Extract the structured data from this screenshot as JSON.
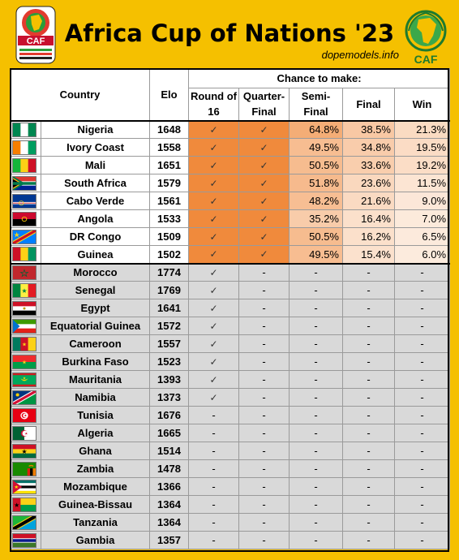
{
  "header": {
    "title": "Africa Cup of Nations '23",
    "subtitle": "dopemodels.info",
    "logo_left_text": "CAF",
    "logo_right_text": "CAF"
  },
  "chart_data": {
    "type": "table",
    "super_header": "Chance to make:",
    "columns": [
      "Country",
      "Elo",
      "Round of 16",
      "Quarter-Final",
      "Semi-Final",
      "Final",
      "Win"
    ],
    "rows": [
      {
        "country": "Nigeria",
        "elo": "1648",
        "r16": "✓",
        "qf": "✓",
        "sf": "64.8%",
        "final": "38.5%",
        "win": "21.3%"
      },
      {
        "country": "Ivory Coast",
        "elo": "1558",
        "r16": "✓",
        "qf": "✓",
        "sf": "49.5%",
        "final": "34.8%",
        "win": "19.5%"
      },
      {
        "country": "Mali",
        "elo": "1651",
        "r16": "✓",
        "qf": "✓",
        "sf": "50.5%",
        "final": "33.6%",
        "win": "19.2%"
      },
      {
        "country": "South Africa",
        "elo": "1579",
        "r16": "✓",
        "qf": "✓",
        "sf": "51.8%",
        "final": "23.6%",
        "win": "11.5%"
      },
      {
        "country": "Cabo Verde",
        "elo": "1561",
        "r16": "✓",
        "qf": "✓",
        "sf": "48.2%",
        "final": "21.6%",
        "win": "9.0%"
      },
      {
        "country": "Angola",
        "elo": "1533",
        "r16": "✓",
        "qf": "✓",
        "sf": "35.2%",
        "final": "16.4%",
        "win": "7.0%"
      },
      {
        "country": "DR Congo",
        "elo": "1509",
        "r16": "✓",
        "qf": "✓",
        "sf": "50.5%",
        "final": "16.2%",
        "win": "6.5%"
      },
      {
        "country": "Guinea",
        "elo": "1502",
        "r16": "✓",
        "qf": "✓",
        "sf": "49.5%",
        "final": "15.4%",
        "win": "6.0%"
      },
      {
        "country": "Morocco",
        "elo": "1774",
        "r16": "✓",
        "qf": "-",
        "sf": "-",
        "final": "-",
        "win": "-"
      },
      {
        "country": "Senegal",
        "elo": "1769",
        "r16": "✓",
        "qf": "-",
        "sf": "-",
        "final": "-",
        "win": "-"
      },
      {
        "country": "Egypt",
        "elo": "1641",
        "r16": "✓",
        "qf": "-",
        "sf": "-",
        "final": "-",
        "win": "-"
      },
      {
        "country": "Equatorial Guinea",
        "elo": "1572",
        "r16": "✓",
        "qf": "-",
        "sf": "-",
        "final": "-",
        "win": "-"
      },
      {
        "country": "Cameroon",
        "elo": "1557",
        "r16": "✓",
        "qf": "-",
        "sf": "-",
        "final": "-",
        "win": "-"
      },
      {
        "country": "Burkina Faso",
        "elo": "1523",
        "r16": "✓",
        "qf": "-",
        "sf": "-",
        "final": "-",
        "win": "-"
      },
      {
        "country": "Mauritania",
        "elo": "1393",
        "r16": "✓",
        "qf": "-",
        "sf": "-",
        "final": "-",
        "win": "-"
      },
      {
        "country": "Namibia",
        "elo": "1373",
        "r16": "✓",
        "qf": "-",
        "sf": "-",
        "final": "-",
        "win": "-"
      },
      {
        "country": "Tunisia",
        "elo": "1676",
        "r16": "-",
        "qf": "-",
        "sf": "-",
        "final": "-",
        "win": "-"
      },
      {
        "country": "Algeria",
        "elo": "1665",
        "r16": "-",
        "qf": "-",
        "sf": "-",
        "final": "-",
        "win": "-"
      },
      {
        "country": "Ghana",
        "elo": "1514",
        "r16": "-",
        "qf": "-",
        "sf": "-",
        "final": "-",
        "win": "-"
      },
      {
        "country": "Zambia",
        "elo": "1478",
        "r16": "-",
        "qf": "-",
        "sf": "-",
        "final": "-",
        "win": "-"
      },
      {
        "country": "Mozambique",
        "elo": "1366",
        "r16": "-",
        "qf": "-",
        "sf": "-",
        "final": "-",
        "win": "-"
      },
      {
        "country": "Guinea-Bissau",
        "elo": "1364",
        "r16": "-",
        "qf": "-",
        "sf": "-",
        "final": "-",
        "win": "-"
      },
      {
        "country": "Tanzania",
        "elo": "1364",
        "r16": "-",
        "qf": "-",
        "sf": "-",
        "final": "-",
        "win": "-"
      },
      {
        "country": "Gambia",
        "elo": "1357",
        "r16": "-",
        "qf": "-",
        "sf": "-",
        "final": "-",
        "win": "-"
      }
    ]
  },
  "colors": {
    "background": "#F5C000",
    "certain": "#F08A3C",
    "eliminated_row": "#D9D9D9"
  }
}
